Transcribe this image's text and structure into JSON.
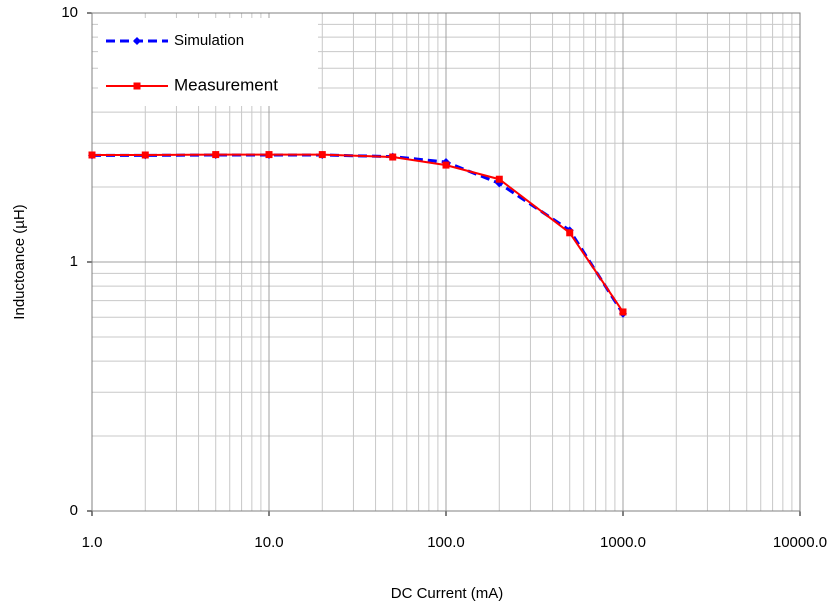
{
  "chart_data": {
    "type": "line",
    "x_label": "DC Current (mA)",
    "y_label": "Inductoance (µH)",
    "x_log": true,
    "y_log": true,
    "grid": true,
    "minor_grid": true,
    "legend": "upper-left",
    "x": [
      1,
      2,
      5,
      10,
      20,
      50,
      100,
      200,
      500,
      1000
    ],
    "series": [
      {
        "name": "Simulation",
        "color": "#0000ff",
        "dash": true,
        "marker": "diamond",
        "values": [
          2.68,
          2.68,
          2.69,
          2.69,
          2.69,
          2.65,
          2.52,
          2.07,
          1.34,
          0.62
        ]
      },
      {
        "name": "Measurement",
        "color": "#ff0000",
        "dash": false,
        "marker": "square",
        "values": [
          2.69,
          2.69,
          2.7,
          2.7,
          2.7,
          2.64,
          2.45,
          2.15,
          1.31,
          0.63
        ]
      }
    ],
    "xlim": [
      1,
      10000
    ],
    "xticks": [
      {
        "value": 1,
        "label": "1.0"
      },
      {
        "value": 10,
        "label": "10.0"
      },
      {
        "value": 100,
        "label": "100.0"
      },
      {
        "value": 1000,
        "label": "1000.0"
      },
      {
        "value": 10000,
        "label": "10000.0"
      }
    ],
    "ylim": [
      0.1,
      10
    ],
    "yticks": [
      {
        "value": 0.1,
        "label": "0"
      },
      1,
      10
    ]
  }
}
